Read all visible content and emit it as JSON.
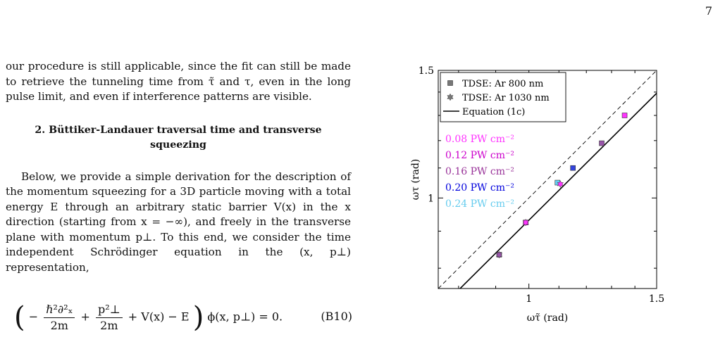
{
  "page_number": "7",
  "body": {
    "paragraph1": "our procedure is still applicable, since the fit can still be made to retrieve the tunneling time from τ̃ and τ, even in the long pulse limit, and even if interference patterns are visible.",
    "section_heading": "2.   Büttiker-Landauer traversal time and transverse squeezing",
    "paragraph2": "Below, we provide a simple derivation for the description of the momentum squeezing for a 3D particle moving with a total energy E through an arbitrary static barrier V(x) in the x direction (starting from x = −∞), and freely in the transverse plane with momentum p⊥. To this end, we consider the time independent Schrödinger equation in the (x, p⊥) representation,"
  },
  "equation": {
    "open": "(",
    "minus": "−",
    "frac1_num": "ℏ²∂²ₓ",
    "frac1_den": "2m",
    "plus": "+",
    "frac2_num": "p²⊥",
    "frac2_den": "2m",
    "rest": "+ V(x) − E",
    "close": ")",
    "tail": "ϕ(x, p⊥) = 0.",
    "label": "(B10)"
  },
  "chart_data": {
    "type": "scatter",
    "xlabel": "ωτ̃ (rad)",
    "ylabel": "ωτ (rad)",
    "log_scale": true,
    "xlim": [
      0.75,
      1.5
    ],
    "ylim": [
      0.75,
      1.5
    ],
    "xticks": [
      "1",
      "1.5"
    ],
    "yticks": [
      "1",
      "1.5"
    ],
    "legend": {
      "placement": "top-left",
      "entries": [
        "TDSE: Ar 800 nm",
        "TDSE: Ar 1030 nm",
        "Equation (1c)"
      ]
    },
    "intensity_labels": [
      {
        "text": "0.08 PW cm⁻²",
        "color": "#ff33ff"
      },
      {
        "text": "0.12 PW cm⁻²",
        "color": "#cc00cc"
      },
      {
        "text": "0.16 PW cm⁻²",
        "color": "#993399"
      },
      {
        "text": "0.20 PW cm⁻²",
        "color": "#0000dd"
      },
      {
        "text": "0.24 PW cm⁻²",
        "color": "#66ccee"
      }
    ],
    "series": [
      {
        "name": "TDSE: Ar 800 nm",
        "marker": "square",
        "points": [
          {
            "x": 1.355,
            "y": 1.3,
            "color": "#ff33ff"
          },
          {
            "x": 1.26,
            "y": 1.19,
            "color": "#9955aa"
          },
          {
            "x": 1.15,
            "y": 1.1,
            "color": "#3344dd"
          },
          {
            "x": 1.095,
            "y": 1.05,
            "color": "#66ccee"
          },
          {
            "x": 0.99,
            "y": 0.925,
            "color": "#ff33ff"
          },
          {
            "x": 0.91,
            "y": 0.835,
            "color": "#9955aa"
          }
        ]
      },
      {
        "name": "TDSE: Ar 1030 nm",
        "marker": "hexagram",
        "points": [
          {
            "x": 1.105,
            "y": 1.045,
            "color": "#ff33ff"
          },
          {
            "x": 0.99,
            "y": 0.925,
            "color": "#ff33ff"
          },
          {
            "x": 0.91,
            "y": 0.835,
            "color": "#9955aa"
          }
        ]
      },
      {
        "name": "Equation (1c)",
        "type": "line",
        "color": "#000000",
        "x": [
          0.75,
          1.5
        ],
        "y": [
          0.7,
          1.395
        ]
      }
    ],
    "reference_line": {
      "style": "dashed",
      "color": "#000000",
      "x": [
        0.75,
        1.5
      ],
      "y": [
        0.75,
        1.5
      ]
    }
  }
}
